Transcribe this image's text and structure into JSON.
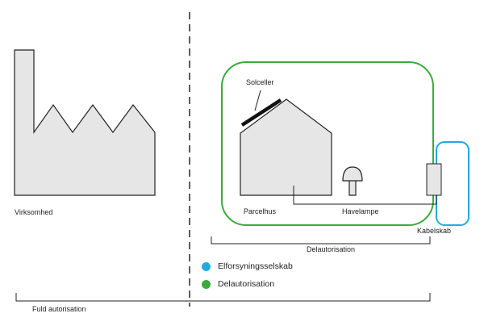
{
  "labels": {
    "virksomhed": "Virksomhed",
    "solceller": "Solceller",
    "parcelhus": "Parcelhus",
    "havelampe": "Havelampe",
    "kabelskab": "Kabelskab",
    "delautorisation_bracket": "Delautorisation",
    "fuld_autorisation": "Fuld autorisation"
  },
  "legend": [
    {
      "label": "Elforsyningsselskab",
      "color": "#22aae0"
    },
    {
      "label": "Delautorisation",
      "color": "#3aaa3a"
    }
  ],
  "colors": {
    "green_boundary": "#3aaa3a",
    "blue_boundary": "#22aae0",
    "building_fill": "#e6e6e6",
    "outline": "#222222"
  }
}
